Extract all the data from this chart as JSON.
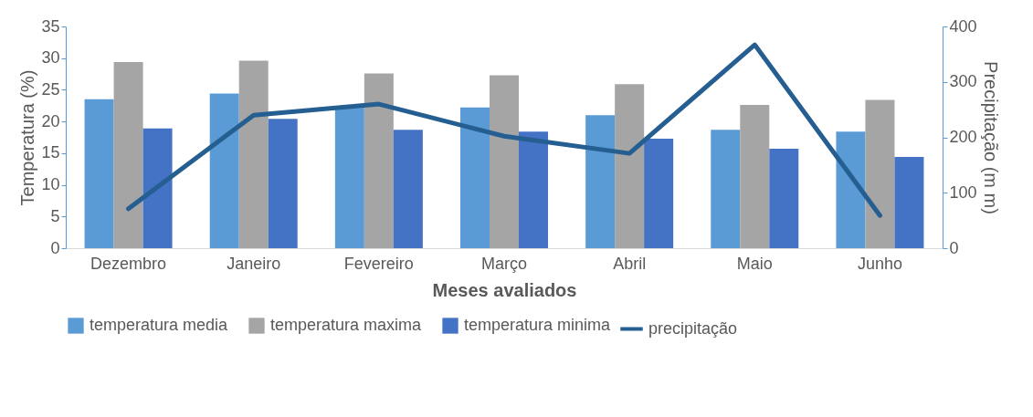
{
  "chart_data": {
    "type": "bar",
    "xlabel": "Meses avaliados",
    "ylabel": "Temperatura (%)",
    "y2label": "Precipitação (m m)",
    "categories": [
      "Dezembro",
      "Janeiro",
      "Fevereiro",
      "Março",
      "Abril",
      "Maio",
      "Junho"
    ],
    "series": [
      {
        "name": "temperatura media",
        "color": "#5b9bd5",
        "values": [
          23.5,
          24.4,
          22.3,
          22.2,
          21.0,
          18.7,
          18.4
        ]
      },
      {
        "name": "temperatura maxima",
        "color": "#a5a5a5",
        "values": [
          29.4,
          29.6,
          27.6,
          27.3,
          25.9,
          22.6,
          23.4
        ]
      },
      {
        "name": "temperatura minima",
        "color": "#4472c4",
        "values": [
          18.9,
          20.4,
          18.7,
          18.4,
          17.3,
          15.7,
          14.4
        ]
      },
      {
        "name": "precipitação",
        "type": "line",
        "axis": "y2",
        "color": "#255e91",
        "values": [
          71,
          240,
          260,
          202,
          171,
          367,
          59
        ]
      }
    ],
    "ylim": [
      0,
      35
    ],
    "yticks": [
      0,
      5,
      10,
      15,
      20,
      25,
      30,
      35
    ],
    "y2lim": [
      0,
      400
    ],
    "y2ticks": [
      0,
      100,
      200,
      300,
      400
    ],
    "grid": false,
    "legend": "bottom",
    "marker": "none",
    "line_style": "solid"
  }
}
